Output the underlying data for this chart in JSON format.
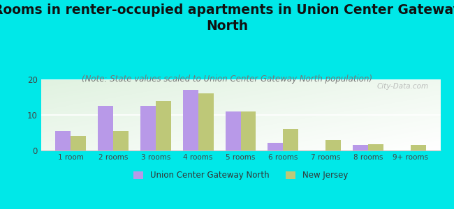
{
  "title": "Rooms in renter-occupied apartments in Union Center Gateway\nNorth",
  "subtitle": "(Note: State values scaled to Union Center Gateway North population)",
  "categories": [
    "1 room",
    "2 rooms",
    "3 rooms",
    "4 rooms",
    "5 rooms",
    "6 rooms",
    "7 rooms",
    "8 rooms",
    "9+ rooms"
  ],
  "union_values": [
    5.5,
    12.5,
    12.5,
    17.0,
    11.0,
    2.2,
    0,
    1.5,
    0
  ],
  "nj_values": [
    4.2,
    5.5,
    14.0,
    16.0,
    11.0,
    6.0,
    3.0,
    1.8,
    1.5
  ],
  "union_color": "#b899e8",
  "nj_color": "#bec878",
  "background_outer": "#00e8e8",
  "ylim": [
    0,
    20
  ],
  "yticks": [
    0,
    10,
    20
  ],
  "bar_width": 0.36,
  "title_fontsize": 13.5,
  "subtitle_fontsize": 8.5,
  "legend_label_union": "Union Center Gateway North",
  "legend_label_nj": "New Jersey",
  "watermark": "City-Data.com"
}
